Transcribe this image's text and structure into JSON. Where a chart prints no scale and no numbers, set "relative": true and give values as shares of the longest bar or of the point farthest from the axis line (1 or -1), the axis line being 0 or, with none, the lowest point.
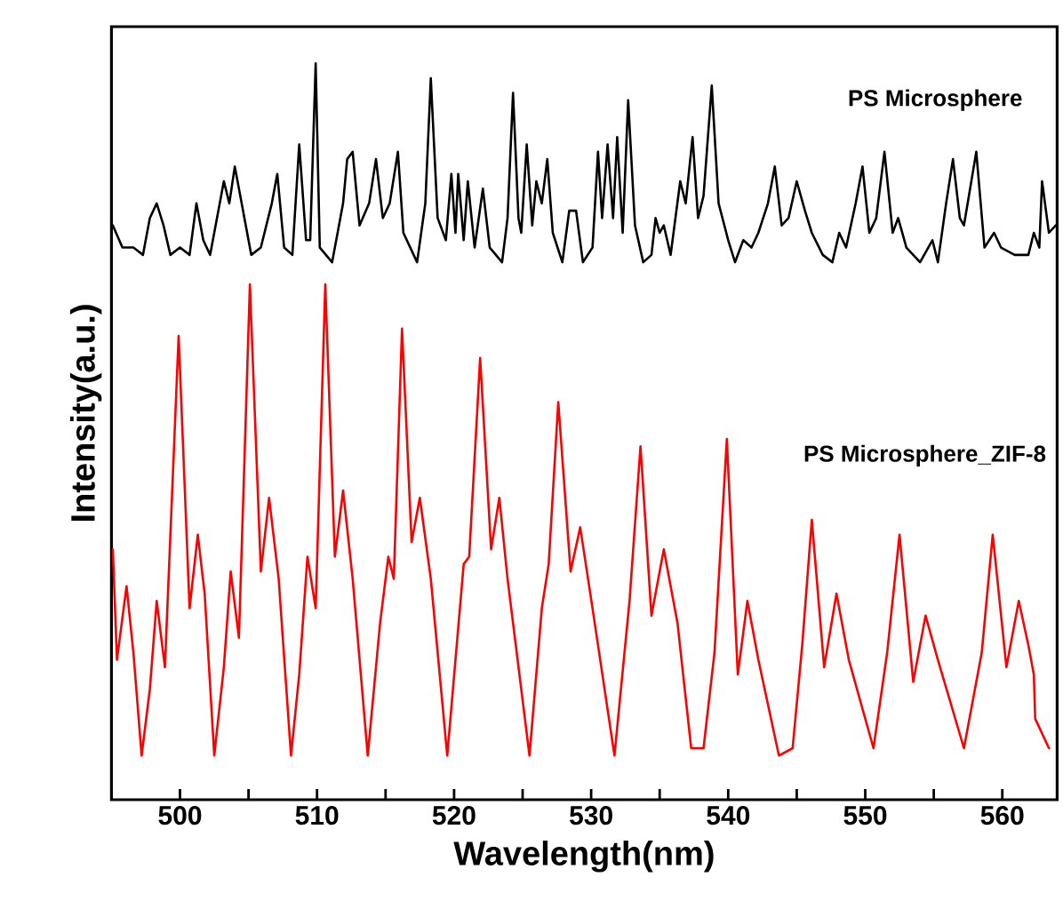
{
  "chart_data": {
    "type": "line",
    "xlabel": "Wavelength(nm)",
    "ylabel": "Intensity(a.u.)",
    "relative": true,
    "xlim": [
      495,
      564
    ],
    "xticks": [
      500,
      {
        "value": 505,
        "label": null
      },
      510,
      {
        "value": 515,
        "label": null
      },
      520,
      {
        "value": 525,
        "label": null
      },
      530,
      {
        "value": 535,
        "label": null
      },
      540,
      {
        "value": 545,
        "label": null
      },
      550,
      {
        "value": 555,
        "label": null
      },
      560
    ],
    "grid": false,
    "marker": "none",
    "line_style": "solid",
    "series": [
      {
        "name": "PS Microsphere",
        "color": "#000000",
        "x": [
          495.1,
          495.8,
          496.6,
          497.3,
          497.8,
          498.3,
          498.8,
          499.3,
          500.0,
          500.7,
          501.2,
          501.7,
          502.2,
          503.2,
          503.6,
          504.0,
          504.5,
          505.2,
          505.9,
          506.7,
          507.1,
          507.6,
          508.2,
          508.7,
          509.2,
          509.5,
          509.9,
          510.2,
          511.1,
          511.9,
          512.2,
          512.6,
          513.1,
          513.8,
          514.3,
          514.8,
          515.3,
          515.9,
          516.3,
          517.3,
          517.9,
          518.3,
          518.8,
          519.4,
          519.8,
          520.1,
          520.3,
          520.7,
          521.0,
          521.5,
          522.1,
          522.6,
          523.5,
          523.9,
          524.3,
          524.7,
          524.9,
          525.3,
          525.7,
          526.0,
          526.4,
          526.8,
          527.2,
          527.9,
          528.4,
          528.9,
          529.4,
          530.1,
          530.5,
          530.8,
          531.2,
          531.6,
          531.9,
          532.3,
          532.7,
          533.2,
          533.8,
          534.4,
          534.7,
          535.0,
          535.3,
          535.8,
          536.5,
          536.9,
          537.4,
          537.8,
          538.2,
          538.8,
          539.3,
          540.0,
          540.5,
          541.1,
          541.7,
          542.2,
          542.9,
          543.4,
          543.9,
          544.4,
          545.0,
          545.6,
          546.1,
          546.9,
          547.6,
          548.1,
          548.6,
          549.3,
          549.8,
          550.3,
          550.8,
          551.4,
          552.0,
          552.4,
          553.0,
          554.0,
          554.9,
          555.3,
          555.9,
          556.4,
          556.9,
          557.2,
          558.1,
          558.7,
          559.4,
          559.9,
          560.9,
          561.9,
          562.3,
          562.7,
          562.9,
          563.4,
          563.9
        ],
        "values": [
          0.78,
          0.75,
          0.75,
          0.74,
          0.79,
          0.81,
          0.78,
          0.74,
          0.75,
          0.74,
          0.81,
          0.76,
          0.74,
          0.84,
          0.81,
          0.86,
          0.81,
          0.74,
          0.75,
          0.81,
          0.85,
          0.75,
          0.74,
          0.89,
          0.76,
          0.76,
          1.0,
          0.75,
          0.73,
          0.81,
          0.87,
          0.88,
          0.78,
          0.81,
          0.87,
          0.79,
          0.81,
          0.88,
          0.77,
          0.73,
          0.81,
          0.98,
          0.79,
          0.76,
          0.85,
          0.77,
          0.85,
          0.76,
          0.84,
          0.75,
          0.83,
          0.75,
          0.73,
          0.79,
          0.96,
          0.79,
          0.77,
          0.89,
          0.78,
          0.84,
          0.81,
          0.87,
          0.77,
          0.73,
          0.8,
          0.8,
          0.73,
          0.75,
          0.88,
          0.79,
          0.89,
          0.79,
          0.9,
          0.77,
          0.95,
          0.78,
          0.73,
          0.74,
          0.79,
          0.77,
          0.78,
          0.74,
          0.84,
          0.81,
          0.9,
          0.79,
          0.82,
          0.97,
          0.81,
          0.76,
          0.73,
          0.76,
          0.75,
          0.77,
          0.81,
          0.86,
          0.78,
          0.79,
          0.84,
          0.8,
          0.77,
          0.74,
          0.73,
          0.77,
          0.75,
          0.81,
          0.86,
          0.77,
          0.79,
          0.88,
          0.77,
          0.79,
          0.75,
          0.73,
          0.76,
          0.73,
          0.81,
          0.87,
          0.79,
          0.78,
          0.88,
          0.75,
          0.77,
          0.75,
          0.74,
          0.74,
          0.77,
          0.75,
          0.84,
          0.77,
          0.78
        ]
      },
      {
        "name": "PS Microsphere_ZIF-8",
        "color": "#ff0000",
        "x": [
          495.1,
          495.4,
          496.1,
          496.6,
          497.2,
          497.8,
          498.3,
          498.9,
          499.9,
          500.7,
          501.3,
          501.8,
          502.5,
          503.2,
          503.7,
          504.3,
          505.1,
          505.9,
          506.5,
          507.2,
          508.1,
          508.7,
          509.3,
          509.9,
          510.6,
          511.3,
          511.9,
          512.6,
          513.7,
          514.6,
          515.2,
          515.6,
          516.2,
          516.9,
          517.5,
          518.3,
          519.5,
          520.7,
          521.1,
          521.9,
          522.7,
          523.3,
          523.9,
          525.5,
          526.4,
          526.9,
          527.6,
          528.5,
          529.2,
          530.1,
          531.7,
          532.8,
          533.6,
          534.4,
          535.3,
          536.3,
          537.3,
          538.2,
          539.0,
          539.9,
          540.7,
          541.4,
          542.2,
          543.7,
          544.7,
          545.4,
          546.1,
          547.0,
          547.9,
          548.8,
          550.6,
          551.6,
          552.5,
          553.5,
          554.4,
          555.3,
          557.2,
          558.5,
          559.3,
          560.3,
          561.2,
          561.9,
          562.3,
          562.4,
          563.4
        ],
        "values": [
          0.34,
          0.19,
          0.29,
          0.2,
          0.06,
          0.15,
          0.27,
          0.18,
          0.63,
          0.26,
          0.36,
          0.28,
          0.06,
          0.18,
          0.31,
          0.22,
          0.7,
          0.31,
          0.41,
          0.3,
          0.06,
          0.17,
          0.33,
          0.26,
          0.7,
          0.33,
          0.42,
          0.3,
          0.06,
          0.24,
          0.33,
          0.3,
          0.64,
          0.35,
          0.41,
          0.3,
          0.06,
          0.32,
          0.33,
          0.6,
          0.34,
          0.41,
          0.3,
          0.06,
          0.26,
          0.32,
          0.54,
          0.31,
          0.37,
          0.26,
          0.06,
          0.27,
          0.48,
          0.25,
          0.34,
          0.24,
          0.07,
          0.07,
          0.2,
          0.49,
          0.17,
          0.27,
          0.19,
          0.06,
          0.07,
          0.21,
          0.38,
          0.18,
          0.28,
          0.19,
          0.07,
          0.2,
          0.36,
          0.16,
          0.25,
          0.19,
          0.07,
          0.2,
          0.36,
          0.18,
          0.27,
          0.21,
          0.17,
          0.11,
          0.07
        ]
      }
    ]
  }
}
